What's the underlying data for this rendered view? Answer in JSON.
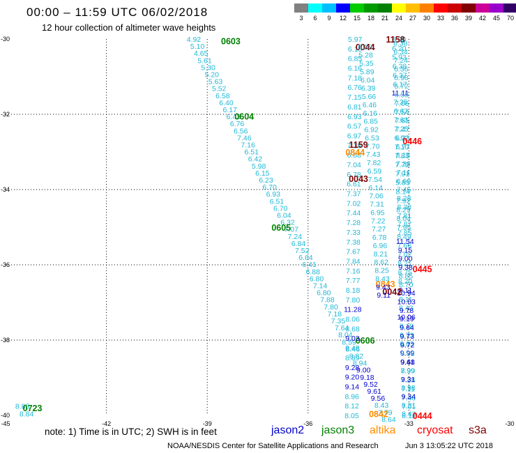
{
  "header": {
    "title": "00:00 – 11:59 UTC 06/02/2018",
    "subtitle": "12 hour collection of altimeter wave heights"
  },
  "legend": {
    "unit": "(ft)",
    "colors": [
      "#808080",
      "#00ffff",
      "#00bfff",
      "#0000ff",
      "#00cc00",
      "#009900",
      "#008000",
      "#ffff00",
      "#ffbf00",
      "#ff8000",
      "#ff0000",
      "#cc0000",
      "#800000",
      "#cc0099",
      "#9900cc",
      "#330066",
      "#000000"
    ],
    "labels": [
      "3",
      "6",
      "9",
      "12",
      "15",
      "18",
      "21",
      "24",
      "27",
      "30",
      "33",
      "36",
      "39",
      "42",
      "45",
      "70"
    ]
  },
  "map": {
    "x_ticks": [
      "-45",
      "-42",
      "-39",
      "-36",
      "-33",
      "-30"
    ],
    "y_ticks": [
      "-30",
      "-32",
      "-34",
      "-36",
      "-38",
      "-40"
    ],
    "sat_colors": {
      "j2": "#0000cc",
      "j3": "#008000",
      "al": "#ff8c00",
      "cs": "#ff0000",
      "s3": "#800000"
    }
  },
  "tracks": [
    {
      "id": "t0603",
      "sat": "j3",
      "label": "0603",
      "label_lon": -38.3,
      "label_lat": -30.05,
      "start_lon": -39.4,
      "start_lat": -30.0,
      "end_lon": -33.6,
      "end_lat": -40.1,
      "values": [
        "4.92",
        "5.10",
        "4.65",
        "5.61",
        "5.30",
        "5.20",
        "5.63",
        "5.52",
        "6.58",
        "6.40",
        "6.17",
        "6.43",
        "6.76",
        "6.56",
        "7.46",
        "7.16",
        "6.51",
        "6.42",
        "5.98",
        "6.15",
        "6.23",
        "6.70",
        "6.93",
        "6.51",
        "6.70",
        "6.04",
        "6.32",
        "7.07",
        "7.24",
        "6.84",
        "7.52",
        "6.64",
        "6.41",
        "6.88",
        "6.80",
        "7.14",
        "6.80",
        "7.88",
        "7.80",
        "7.18",
        "7.35",
        "7.64",
        "8.04",
        "8.59",
        "8.46",
        "8.82",
        "8.94",
        "9.00",
        "9.18",
        "9.52",
        "9.61",
        "9.56",
        "8.43",
        "7.79",
        "8.64"
      ]
    },
    {
      "id": "t0604",
      "sat": "j3",
      "label": "0604",
      "label_lon": -37.9,
      "label_lat": -32.05
    },
    {
      "id": "t0605",
      "sat": "j3",
      "label": "0605",
      "label_lon": -36.8,
      "label_lat": -35.0
    },
    {
      "id": "t0606",
      "sat": "j3",
      "label": "0606",
      "label_lon": -34.3,
      "label_lat": -38.0
    },
    {
      "id": "t0723",
      "sat": "j3",
      "label": "0723",
      "label_lon": -44.2,
      "label_lat": -39.8,
      "values": [
        "8.85",
        "8.84"
      ]
    },
    {
      "id": "t0044",
      "sat": "s3",
      "label": "0044",
      "label_lon": -34.3,
      "label_lat": -30.2,
      "start_lon": -34.6,
      "start_lat": -30.0,
      "end_lon": -34.7,
      "end_lat": -40.0,
      "values": [
        "5.97",
        "6.15",
        "6.85",
        "6.16",
        "7.18",
        "6.76",
        "7.15",
        "6.81",
        "6.93",
        "6.57",
        "6.97",
        "7.18",
        "6.88",
        "7.04",
        "6.78",
        "6.61",
        "7.37",
        "7.02",
        "7.44",
        "7.28",
        "7.33",
        "7.38",
        "7.67",
        "7.84",
        "7.16",
        "7.77",
        "8.18",
        "7.80",
        "11.28",
        "8.06",
        "8.68",
        "9.03",
        "8.48",
        "8.89",
        "9.28",
        "9.20",
        "9.14",
        "8.96",
        "8.12",
        "8.05"
      ]
    },
    {
      "id": "t1158",
      "sat": "s3",
      "label": "1158",
      "label_lon": -33.4,
      "label_lat": -30.0,
      "start_lon": -33.3,
      "start_lat": -30.0,
      "end_lon": -33.0,
      "end_lat": -40.0,
      "values": [
        "6.20",
        "6.20",
        "5.93",
        "6.38",
        "6.37",
        "6.17",
        "11.11",
        "7.35",
        "6.67",
        "7.63",
        "7.25",
        "6.92",
        "7.10",
        "7.83",
        "7.72",
        "7.91",
        "5.83",
        "8.14",
        "7.92",
        "8.29",
        "8.04",
        "7.95",
        "8.49",
        "7.66",
        "7.02",
        "8.21",
        "8.75",
        "8.20",
        "9.11",
        "8.11",
        "8.43",
        "10.06",
        "8.18",
        "8.73",
        "8.63",
        "9.99",
        "9.41",
        "7.99",
        "7.28",
        "7.11",
        "7.48",
        "7.01",
        "8.12"
      ]
    },
    {
      "id": "t0446",
      "sat": "cs",
      "label": "0446",
      "label_lon": -32.9,
      "label_lat": -32.7,
      "start_lon": -33.25,
      "start_lat": -30.1,
      "end_lon": -33.0,
      "end_lat": -39.95,
      "values": [
        "6.38",
        "6.34",
        "7.24",
        "6.36",
        "6.98",
        "5.72",
        "6.55",
        "7.06",
        "7.54",
        "7.65",
        "7.47",
        "6.23",
        "6.77",
        "8.15",
        "7.38",
        "7.11",
        "6.60",
        "7.45",
        "8.28",
        "8.30",
        "7.81",
        "7.87",
        "7.85",
        "11.54",
        "9.15",
        "9.00",
        "9.38",
        "8.85",
        "8.70",
        "10.94",
        "10.03",
        "9.78",
        "9.19",
        "9.64",
        "9.73",
        "9.72",
        "8.92",
        "9.68",
        "8.99",
        "9.31",
        "8.98",
        "9.34",
        "8.31",
        "8.42"
      ]
    },
    {
      "id": "t1159",
      "sat": "s3",
      "label": "1159",
      "label_lon": -34.5,
      "label_lat": -32.8
    },
    {
      "id": "t0844",
      "sat": "al",
      "label": "0844",
      "label_lon": -34.6,
      "label_lat": -33.0
    },
    {
      "id": "t0043",
      "sat": "s3",
      "label": "0043",
      "label_lon": -34.5,
      "label_lat": -33.7
    },
    {
      "id": "t0445",
      "sat": "cs",
      "label": "0445",
      "label_lon": -32.6,
      "label_lat": -36.1
    },
    {
      "id": "t0843",
      "sat": "al",
      "label": "0843",
      "label_lon": -33.7,
      "label_lat": -36.5
    },
    {
      "id": "t0042",
      "sat": "s3",
      "label": "0042",
      "label_lon": -33.5,
      "label_lat": -36.7
    },
    {
      "id": "t0444",
      "sat": "cs",
      "label": "0444",
      "label_lon": -32.6,
      "label_lat": -40.0
    },
    {
      "id": "t0842",
      "sat": "al",
      "label": "0842",
      "label_lon": -33.9,
      "label_lat": -39.95
    }
  ],
  "secondary_values": [
    "5.58",
    "5.28",
    "5.35",
    "5.89",
    "6.04",
    "6.39",
    "5.66",
    "6.46",
    "6.16",
    "6.85",
    "6.92",
    "6.53",
    "7.70",
    "7.43",
    "7.82",
    "6.59",
    "7.54",
    "6.14",
    "7.06",
    "7.31",
    "6.95",
    "7.22",
    "7.27",
    "6.78",
    "6.96",
    "8.21",
    "8.62",
    "8.25",
    "8.43",
    "9.43",
    "9.11"
  ],
  "footer": {
    "note": "note: 1) Time is in UTC; 2) SWH is in feet",
    "sats": [
      {
        "name": "jason2",
        "color": "#0000cc"
      },
      {
        "name": "jason3",
        "color": "#008000"
      },
      {
        "name": "altika",
        "color": "#ff8c00"
      },
      {
        "name": "cryosat",
        "color": "#ff0000"
      },
      {
        "name": "s3a",
        "color": "#800000"
      }
    ],
    "credit": "NOAA/NESDIS Center for Satellite Applications and Research",
    "timestamp": "Jun  3 13:05:22 UTC 2018"
  }
}
